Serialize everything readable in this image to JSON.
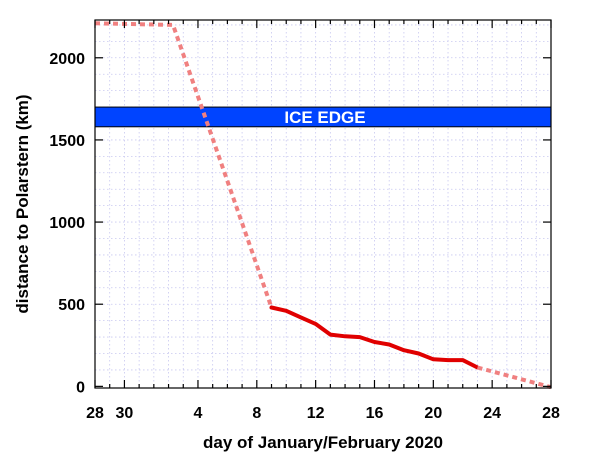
{
  "chart_data": {
    "type": "line",
    "xlabel": "day of January/February 2020",
    "ylabel": "distance to Polarstern (km)",
    "xlim": [
      0,
      31
    ],
    "ylim": [
      -10,
      2230
    ],
    "grid": true,
    "x_ticks": [
      {
        "x": 0,
        "label": "28"
      },
      {
        "x": 2,
        "label": "30"
      },
      {
        "x": 7,
        "label": "4"
      },
      {
        "x": 11,
        "label": "8"
      },
      {
        "x": 15,
        "label": "12"
      },
      {
        "x": 19,
        "label": "16"
      },
      {
        "x": 23,
        "label": "20"
      },
      {
        "x": 27,
        "label": "24"
      },
      {
        "x": 31,
        "label": "28"
      }
    ],
    "y_ticks": [
      {
        "y": 0,
        "label": "0"
      },
      {
        "y": 500,
        "label": "500"
      },
      {
        "y": 1000,
        "label": "1000"
      },
      {
        "y": 1500,
        "label": "1500"
      },
      {
        "y": 2000,
        "label": "2000"
      }
    ],
    "band": {
      "label": "ICE EDGE",
      "y_from": 1580,
      "y_to": 1700,
      "color": "#0044ff"
    },
    "series": [
      {
        "style": "dashed",
        "color": "#f08080",
        "x": [
          0,
          5.3,
          12.0
        ],
        "y": [
          2210,
          2200,
          480
        ]
      },
      {
        "style": "solid",
        "color": "#e00000",
        "x": [
          12.0,
          13.0,
          14.0,
          15.0,
          16.0,
          17.0,
          18.0,
          19.0,
          20.0,
          21.0,
          22.0,
          23.0,
          24.0,
          25.0,
          26.0
        ],
        "y": [
          480,
          460,
          420,
          380,
          315,
          305,
          300,
          270,
          255,
          220,
          200,
          165,
          160,
          160,
          115
        ]
      },
      {
        "style": "dashed",
        "color": "#f08080",
        "x": [
          26.0,
          31.0
        ],
        "y": [
          115,
          -5
        ]
      }
    ]
  }
}
